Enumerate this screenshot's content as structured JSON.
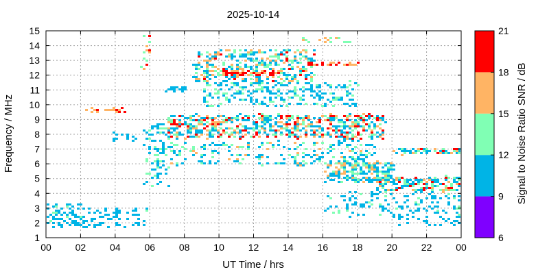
{
  "chart_data": {
    "type": "heatmap",
    "title": "2025-10-14",
    "xlabel": "UT Time / hrs",
    "ylabel": "Frequency / MHz",
    "xlim": [
      0,
      24
    ],
    "ylim": [
      1,
      15
    ],
    "xticks": [
      "00",
      "02",
      "04",
      "06",
      "08",
      "10",
      "12",
      "14",
      "16",
      "18",
      "20",
      "22",
      "00"
    ],
    "yticks": [
      "1",
      "2",
      "3",
      "4",
      "5",
      "6",
      "7",
      "8",
      "9",
      "10",
      "11",
      "12",
      "13",
      "14",
      "15"
    ],
    "grid": true,
    "colorbar": {
      "label": "Signal to Noise Ratio SNR / dB",
      "ticks": [
        "6",
        "9",
        "12",
        "15",
        "18",
        "21"
      ],
      "bands": [
        {
          "from": 6,
          "to": 9,
          "color": "#7f00ff"
        },
        {
          "from": 9,
          "to": 12,
          "color": "#00b4e6"
        },
        {
          "from": 12,
          "to": 15,
          "color": "#80ffb4"
        },
        {
          "from": 15,
          "to": 18,
          "color": "#ffb464"
        },
        {
          "from": 18,
          "to": 21,
          "color": "#ff0000"
        }
      ]
    },
    "regions": [
      {
        "t": [
          0.0,
          2.0
        ],
        "f": [
          1.8,
          3.4
        ],
        "n": 70,
        "snr": [
          9,
          13
        ]
      },
      {
        "t": [
          2.0,
          4.0
        ],
        "f": [
          1.8,
          3.1
        ],
        "n": 45,
        "snr": [
          9,
          12
        ]
      },
      {
        "t": [
          4.0,
          5.8
        ],
        "f": [
          1.8,
          3.1
        ],
        "n": 35,
        "snr": [
          9,
          13
        ]
      },
      {
        "t": [
          2.0,
          4.6
        ],
        "f": [
          9.6,
          9.8
        ],
        "n": 20,
        "snr": [
          16,
          21
        ]
      },
      {
        "t": [
          3.8,
          5.2
        ],
        "f": [
          7.6,
          8.3
        ],
        "n": 14,
        "snr": [
          9,
          12
        ]
      },
      {
        "t": [
          5.4,
          6.0
        ],
        "f": [
          12.3,
          14.8
        ],
        "n": 14,
        "snr": [
          14,
          21
        ]
      },
      {
        "t": [
          5.6,
          7.0
        ],
        "f": [
          4.5,
          8.8
        ],
        "n": 90,
        "snr": [
          9,
          14
        ]
      },
      {
        "t": [
          6.8,
          8.0
        ],
        "f": [
          10.9,
          11.3
        ],
        "n": 24,
        "snr": [
          9,
          12
        ]
      },
      {
        "t": [
          7.0,
          19.5
        ],
        "f": [
          7.8,
          9.4
        ],
        "n": 650,
        "snr": [
          9,
          21
        ]
      },
      {
        "t": [
          7.0,
          19.0
        ],
        "f": [
          6.0,
          7.6
        ],
        "n": 240,
        "snr": [
          9,
          17
        ]
      },
      {
        "t": [
          8.5,
          15.5
        ],
        "f": [
          11.6,
          13.8
        ],
        "n": 380,
        "snr": [
          9,
          19
        ]
      },
      {
        "t": [
          9.0,
          18.0
        ],
        "f": [
          10.0,
          11.6
        ],
        "n": 260,
        "snr": [
          9,
          14
        ]
      },
      {
        "t": [
          10.0,
          13.5
        ],
        "f": [
          12.1,
          12.4
        ],
        "n": 60,
        "snr": [
          17,
          21
        ]
      },
      {
        "t": [
          15.0,
          18.0
        ],
        "f": [
          12.7,
          12.9
        ],
        "n": 24,
        "snr": [
          17,
          21
        ]
      },
      {
        "t": [
          14.8,
          17.5
        ],
        "f": [
          14.3,
          14.6
        ],
        "n": 18,
        "snr": [
          12,
          21
        ]
      },
      {
        "t": [
          16.0,
          20.0
        ],
        "f": [
          4.8,
          6.2
        ],
        "n": 230,
        "snr": [
          9,
          18
        ]
      },
      {
        "t": [
          19.0,
          24.0
        ],
        "f": [
          4.2,
          5.2
        ],
        "n": 160,
        "snr": [
          9,
          20
        ]
      },
      {
        "t": [
          20.0,
          24.0
        ],
        "f": [
          6.7,
          7.1
        ],
        "n": 80,
        "snr": [
          9,
          21
        ]
      },
      {
        "t": [
          16.0,
          24.0
        ],
        "f": [
          2.5,
          4.2
        ],
        "n": 140,
        "snr": [
          9,
          13
        ]
      },
      {
        "t": [
          20.0,
          24.0
        ],
        "f": [
          1.9,
          2.6
        ],
        "n": 30,
        "snr": [
          9,
          12
        ]
      }
    ]
  }
}
